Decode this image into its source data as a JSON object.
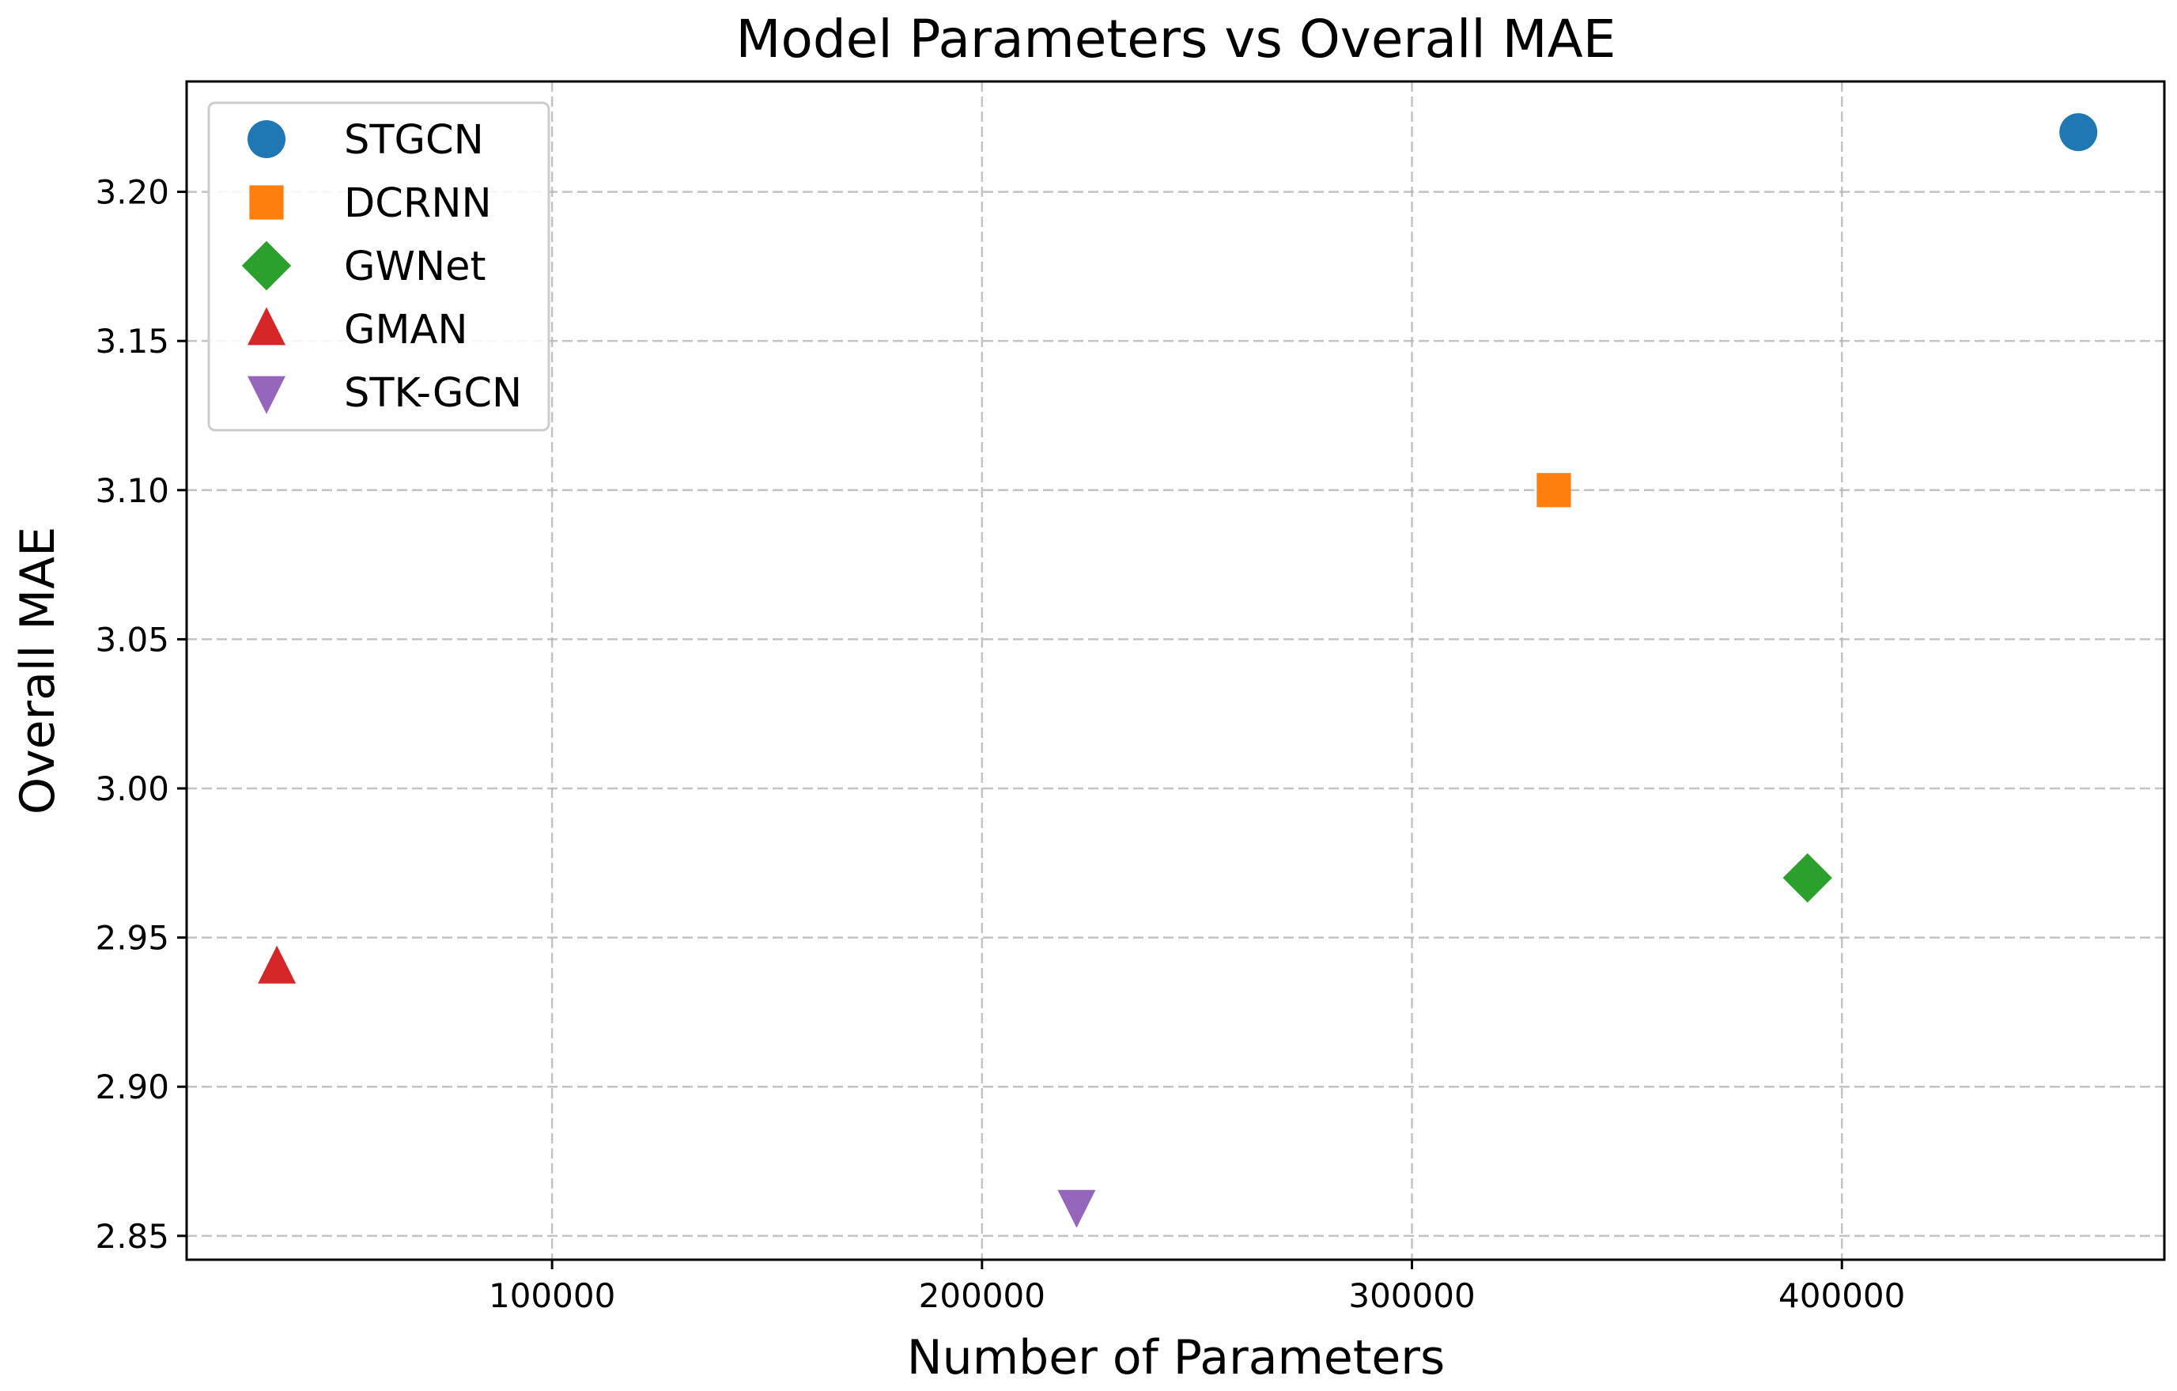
{
  "chart_data": {
    "type": "scatter",
    "title": "Model Parameters vs Overall MAE",
    "xlabel": "Number of Parameters",
    "ylabel": "Overall MAE",
    "xlim": [
      15000,
      475000
    ],
    "ylim": [
      2.842,
      3.237
    ],
    "xticks": [
      100000,
      200000,
      300000,
      400000
    ],
    "xtick_labels": [
      "100000",
      "200000",
      "300000",
      "400000"
    ],
    "yticks": [
      2.85,
      2.9,
      2.95,
      3.0,
      3.05,
      3.1,
      3.15,
      3.2
    ],
    "ytick_labels": [
      "2.85",
      "2.90",
      "2.95",
      "3.00",
      "3.05",
      "3.10",
      "3.15",
      "3.20"
    ],
    "grid": true,
    "legend_position": "top-left",
    "series": [
      {
        "name": "STGCN",
        "marker": "circle",
        "color": "#1f77b4",
        "x": [
          455000
        ],
        "y": [
          3.22
        ]
      },
      {
        "name": "DCRNN",
        "marker": "square",
        "color": "#ff7f0e",
        "x": [
          333000
        ],
        "y": [
          3.1
        ]
      },
      {
        "name": "GWNet",
        "marker": "diamond",
        "color": "#2ca02c",
        "x": [
          392000
        ],
        "y": [
          2.97
        ]
      },
      {
        "name": "GMAN",
        "marker": "triangle-up",
        "color": "#d62728",
        "x": [
          36000
        ],
        "y": [
          2.94
        ]
      },
      {
        "name": "STK-GCN",
        "marker": "triangle-down",
        "color": "#9467bd",
        "x": [
          222000
        ],
        "y": [
          2.86
        ]
      }
    ]
  }
}
